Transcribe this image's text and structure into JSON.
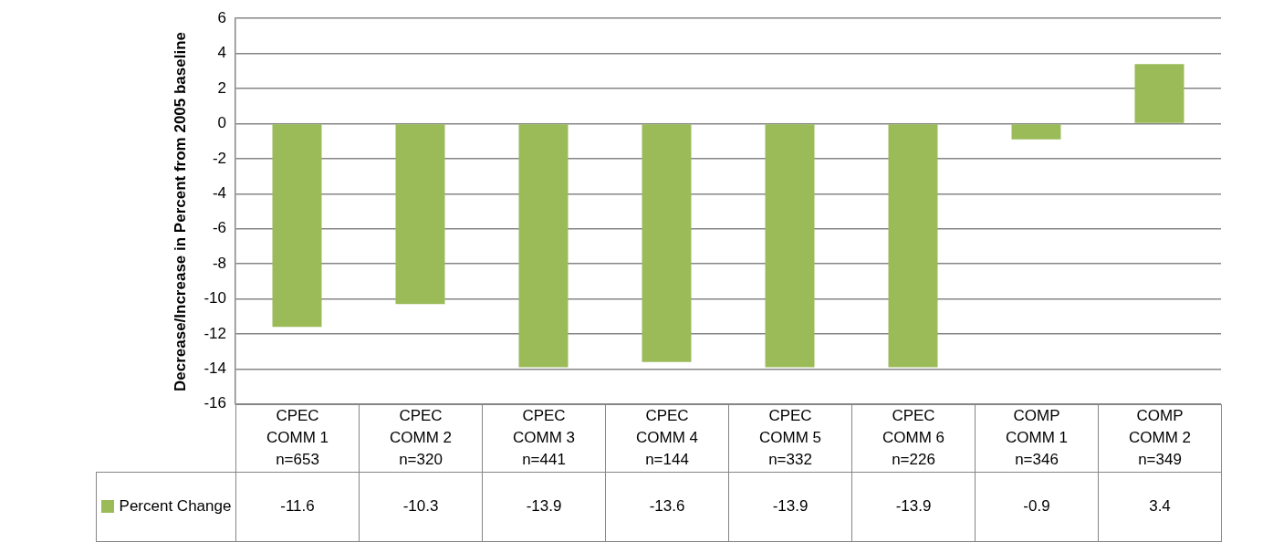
{
  "chart_data": {
    "type": "bar",
    "ylabel": "Decrease/Increase in Percent from 2005 baseline",
    "categories": [
      "CPEC\nCOMM 1\nn=653",
      "CPEC\nCOMM 2\nn=320",
      "CPEC\nCOMM 3\nn=441",
      "CPEC\nCOMM 4\nn=144",
      "CPEC\nCOMM 5\nn=332",
      "CPEC\nCOMM 6\nn=226",
      "COMP\nCOMM 1\nn=346",
      "COMP\nCOMM 2\nn=349"
    ],
    "series": [
      {
        "name": "Percent Change",
        "color": "#9bbb59",
        "values": [
          -11.6,
          -10.3,
          -13.9,
          -13.6,
          -13.9,
          -13.9,
          -0.9,
          3.4
        ]
      }
    ],
    "ylim": [
      -16,
      6
    ],
    "yticks": [
      -16,
      -14,
      -12,
      -10,
      -8,
      -6,
      -4,
      -2,
      0,
      2,
      4,
      6
    ],
    "grid": "y",
    "legend": "bottom",
    "data_labels": true
  }
}
